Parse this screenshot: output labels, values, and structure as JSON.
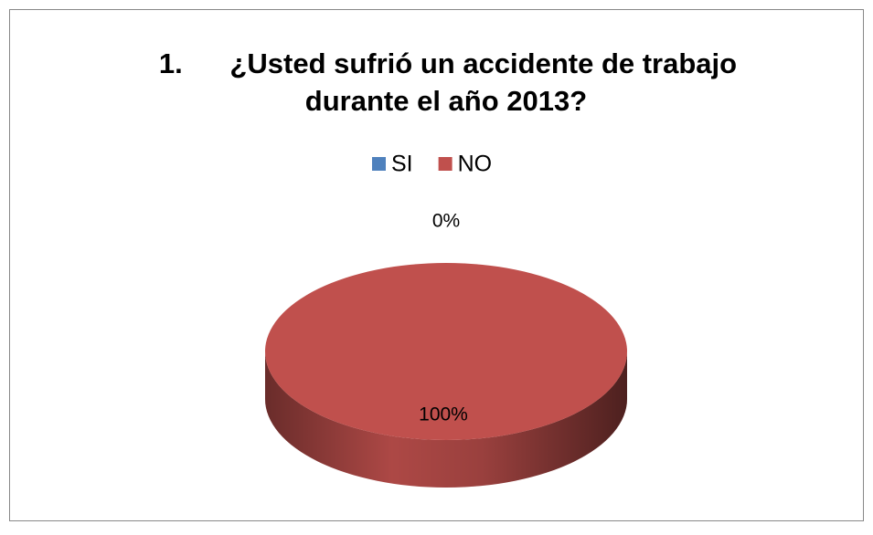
{
  "chart_data": {
    "type": "pie3d",
    "title": [
      "1.      ¿Usted sufrió un accidente de trabajo",
      "durante el año 2013?"
    ],
    "categories": [
      "SI",
      "NO"
    ],
    "values": [
      0,
      100
    ],
    "value_labels": [
      "0%",
      "100%"
    ],
    "colors": [
      "#4f81bd",
      "#c0504d"
    ],
    "legend": "top"
  }
}
